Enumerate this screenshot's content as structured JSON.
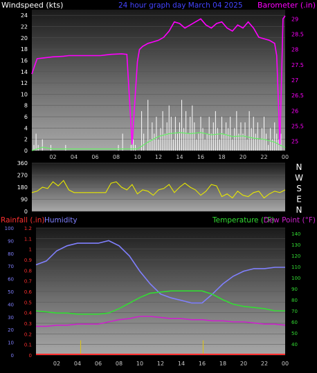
{
  "header": {
    "windspeed_label": "Windspeed (kts)",
    "graph_title": "24 hour graph day   March 04 2025",
    "barometer_label": "Barometer (.in)"
  },
  "lower_header": {
    "rainfall_label": "Rainfall (.in)",
    "humidity_label": "Humidity",
    "temperature_label": "Temperature (°F)",
    "dewpoint_label": "Dew Point (°F)"
  },
  "colors": {
    "windspeed": "#ffffff",
    "windgust_fill": "#cfcfcf",
    "wind_avg": "#66ee66",
    "barometer": "#ff00ff",
    "direction": "#e8e800",
    "rainfall": "#ff3030",
    "humidity": "#8080ff",
    "temperature": "#33dd33",
    "dewpoint": "#cc22cc",
    "rain_daily_bars": "#d8c020",
    "title": "#4444ff"
  },
  "chart_data": [
    {
      "type": "line",
      "x_ticks": [
        "02",
        "04",
        "06",
        "08",
        "10",
        "12",
        "14",
        "16",
        "18",
        "20",
        "22",
        "00"
      ],
      "y_left": {
        "label": "Windspeed (kts)",
        "ticks": [
          0,
          2,
          4,
          6,
          8,
          10,
          12,
          14,
          16,
          18,
          20,
          22,
          24
        ],
        "range": [
          0,
          25
        ]
      },
      "y_right": {
        "label": "Barometer (.in)",
        "ticks": [
          25,
          25.5,
          26,
          26.5,
          27,
          27.5,
          28,
          28.5,
          29
        ],
        "range": [
          24.7,
          29.3
        ]
      },
      "series": [
        {
          "x": [
            0.0,
            0.2,
            0.4,
            0.6,
            0.8,
            1.0,
            1.2,
            1.4,
            1.6,
            1.8,
            2.0,
            2.2,
            2.4,
            2.6,
            2.8,
            3.0,
            3.2,
            3.4,
            3.6,
            3.8,
            4.0,
            4.2,
            4.4,
            4.6,
            4.8,
            5.0,
            5.2,
            5.4,
            5.6,
            5.8,
            6.0,
            6.2,
            6.4,
            6.6,
            6.8,
            7.0,
            7.2,
            7.4,
            7.6,
            7.8,
            8.0,
            8.2,
            8.4,
            8.6,
            8.8,
            9.0,
            9.2,
            9.4,
            9.6,
            9.8,
            10.0,
            10.2,
            10.4,
            10.6,
            10.8,
            11.0,
            11.2,
            11.4,
            11.6,
            11.8,
            12.0,
            12.2,
            12.4,
            12.6,
            12.8,
            13.0,
            13.2,
            13.4,
            13.6,
            13.8,
            14.0,
            14.2,
            14.4,
            14.6,
            14.8,
            15.0,
            15.2,
            15.4,
            15.6,
            15.8,
            16.0,
            16.2,
            16.4,
            16.6,
            16.8,
            17.0,
            17.2,
            17.4,
            17.6,
            17.8,
            18.0,
            18.2,
            18.4,
            18.6,
            18.8,
            19.0,
            19.2,
            19.4,
            19.6,
            19.8,
            20.0,
            20.2,
            20.4,
            20.6,
            20.8,
            21.0,
            21.2,
            21.4,
            21.6,
            21.8,
            22.0,
            22.2,
            22.4,
            22.6,
            22.8,
            23.0,
            23.2,
            23.4,
            23.6,
            23.8,
            24.0
          ],
          "values": [
            0,
            1,
            3,
            1,
            0,
            2,
            0,
            0,
            0,
            1,
            0,
            0,
            0,
            0,
            0,
            0,
            1,
            0,
            0,
            0,
            0,
            0,
            0,
            0,
            0,
            0,
            0,
            0,
            0,
            0,
            0,
            0,
            0,
            0,
            0,
            0,
            0,
            0,
            0,
            0,
            0,
            1,
            0,
            3,
            0,
            0,
            0,
            1,
            2,
            1,
            0,
            0,
            7,
            3,
            0,
            9,
            2,
            5,
            3,
            6,
            2,
            4,
            7,
            3,
            5,
            8,
            6,
            2,
            6,
            3,
            5,
            9,
            4,
            7,
            3,
            6,
            8,
            5,
            2,
            3,
            6,
            4,
            2,
            3,
            6,
            3,
            5,
            7,
            4,
            2,
            6,
            3,
            5,
            4,
            6,
            2,
            4,
            7,
            3,
            5,
            3,
            5,
            2,
            7,
            4,
            6,
            3,
            5,
            2,
            4,
            6,
            3,
            1,
            4,
            2,
            5,
            3,
            2,
            3,
            0,
            0
          ]
        },
        {
          "x": [
            0.0,
            0.5,
            1.0,
            1.5,
            2.0,
            2.5,
            3.0,
            3.5,
            4.0,
            4.5,
            5.0,
            5.5,
            6.0,
            6.5,
            7.0,
            7.5,
            8.0,
            8.5,
            9.0,
            9.5,
            10.0,
            10.2,
            10.5,
            11.0,
            11.5,
            12.0,
            12.5,
            13.0,
            13.5,
            14.0,
            14.5,
            15.0,
            15.5,
            16.0,
            16.5,
            17.0,
            17.5,
            18.0,
            18.5,
            19.0,
            19.5,
            20.0,
            20.5,
            21.0,
            21.5,
            22.0,
            22.5,
            23.0,
            23.2,
            23.5,
            23.8,
            24.0
          ],
          "values": [
            27.2,
            27.7,
            27.72,
            27.74,
            27.76,
            27.77,
            27.78,
            27.8,
            27.8,
            27.8,
            27.8,
            27.8,
            27.8,
            27.8,
            27.82,
            27.84,
            27.85,
            27.86,
            27.84,
            24.9,
            27.6,
            28.0,
            28.1,
            28.2,
            28.25,
            28.3,
            28.4,
            28.6,
            28.9,
            28.85,
            28.7,
            28.8,
            28.9,
            29.0,
            28.8,
            28.7,
            28.85,
            28.9,
            28.7,
            28.6,
            28.8,
            28.7,
            28.9,
            28.7,
            28.4,
            28.35,
            28.3,
            28.2,
            27.8,
            24.9,
            29.0,
            29.1
          ]
        },
        {
          "x": [
            0,
            1,
            2,
            3,
            4,
            5,
            6,
            7,
            8,
            9,
            10,
            11,
            12,
            13,
            14,
            15,
            16,
            17,
            18,
            19,
            20,
            21,
            22,
            23,
            24
          ],
          "values": [
            0,
            0.6,
            0.3,
            0.3,
            0.3,
            0.3,
            0.3,
            0.3,
            0.3,
            0.3,
            0.3,
            1.5,
            2.5,
            3.0,
            3.2,
            3.0,
            3.2,
            2.8,
            3.0,
            2.5,
            2.6,
            2.2,
            2.0,
            1.5,
            0.5
          ]
        }
      ]
    },
    {
      "type": "line",
      "x_ticks": [
        "02",
        "04",
        "06",
        "08",
        "10",
        "12",
        "14",
        "16",
        "18",
        "20",
        "22",
        "00"
      ],
      "y_left": {
        "ticks": [
          0,
          90,
          180,
          270,
          360
        ],
        "range": [
          0,
          360
        ]
      },
      "y_right": {
        "ticks": [
          "N",
          "W",
          "S",
          "E",
          "N"
        ]
      },
      "series": [
        {
          "x": [
            0.0,
            0.5,
            1.0,
            1.5,
            2.0,
            2.5,
            3.0,
            3.5,
            4.0,
            4.5,
            5.0,
            5.5,
            6.0,
            6.5,
            7.0,
            7.5,
            8.0,
            8.5,
            9.0,
            9.5,
            10.0,
            10.5,
            11.0,
            11.5,
            12.0,
            12.5,
            13.0,
            13.5,
            14.0,
            14.5,
            15.0,
            15.5,
            16.0,
            16.5,
            17.0,
            17.5,
            18.0,
            18.5,
            19.0,
            19.5,
            20.0,
            20.5,
            21.0,
            21.5,
            22.0,
            22.5,
            23.0,
            23.5,
            24.0
          ],
          "values": [
            140,
            150,
            180,
            170,
            220,
            190,
            230,
            160,
            140,
            140,
            140,
            140,
            140,
            140,
            140,
            210,
            220,
            180,
            160,
            200,
            130,
            160,
            150,
            120,
            160,
            170,
            200,
            140,
            180,
            210,
            180,
            160,
            120,
            150,
            200,
            190,
            110,
            130,
            100,
            150,
            120,
            110,
            140,
            150,
            100,
            130,
            150,
            140,
            160
          ]
        }
      ]
    },
    {
      "type": "line",
      "x_ticks": [
        "02",
        "04",
        "06",
        "08",
        "10",
        "12",
        "14",
        "16",
        "18",
        "20",
        "22",
        "00"
      ],
      "y_left_rain": {
        "label": "Rainfall (.in)",
        "ticks": [
          0,
          0.1,
          0.2,
          0.3,
          0.4,
          0.5,
          0.6,
          0.7,
          0.8,
          0.9,
          1,
          1.1,
          1.2
        ],
        "range": [
          0,
          1.2
        ]
      },
      "y_left_hum": {
        "label": "Humidity",
        "ticks": [
          0,
          10,
          20,
          30,
          40,
          50,
          60,
          70,
          80,
          90,
          100
        ],
        "range": [
          0,
          100
        ]
      },
      "y_right": {
        "label": "Temperature (°F)",
        "ticks": [
          40,
          50,
          60,
          70,
          80,
          90,
          100,
          110,
          120,
          130,
          140
        ],
        "range": [
          30,
          145
        ]
      },
      "series": [
        {
          "x": [
            0,
            1,
            2,
            3,
            4,
            5,
            6,
            7,
            8,
            9,
            10,
            11,
            12,
            13,
            14,
            15,
            16,
            17,
            18,
            19,
            20,
            21,
            22,
            23,
            24
          ],
          "values": [
            71,
            74,
            82,
            86,
            88,
            88,
            88,
            90,
            86,
            78,
            66,
            56,
            48,
            45,
            43,
            41,
            41,
            48,
            56,
            62,
            66,
            68,
            68,
            69,
            69
          ]
        },
        {
          "x": [
            0,
            1,
            2,
            3,
            4,
            5,
            6,
            7,
            8,
            9,
            10,
            11,
            12,
            13,
            14,
            15,
            16,
            17,
            18,
            19,
            20,
            21,
            22,
            23,
            24
          ],
          "values": [
            70,
            69,
            68,
            68,
            67,
            67,
            67,
            68,
            72,
            77,
            82,
            86,
            87,
            88,
            88,
            88,
            88,
            85,
            80,
            76,
            74,
            73,
            72,
            70,
            70
          ]
        },
        {
          "x": [
            0,
            1,
            2,
            3,
            4,
            5,
            6,
            7,
            8,
            9,
            10,
            11,
            12,
            13,
            14,
            15,
            16,
            17,
            18,
            19,
            20,
            21,
            22,
            23,
            24
          ],
          "values": [
            56,
            56,
            57,
            57,
            58,
            58,
            58,
            60,
            62,
            63,
            65,
            65,
            64,
            63,
            63,
            62,
            62,
            61,
            61,
            60,
            60,
            59,
            58,
            58,
            57
          ]
        },
        {
          "x": [
            0,
            24
          ],
          "values": [
            0,
            0
          ]
        },
        {
          "x": [
            4.3,
            16.1
          ],
          "values": [
            0.06,
            0.06
          ]
        }
      ]
    }
  ]
}
